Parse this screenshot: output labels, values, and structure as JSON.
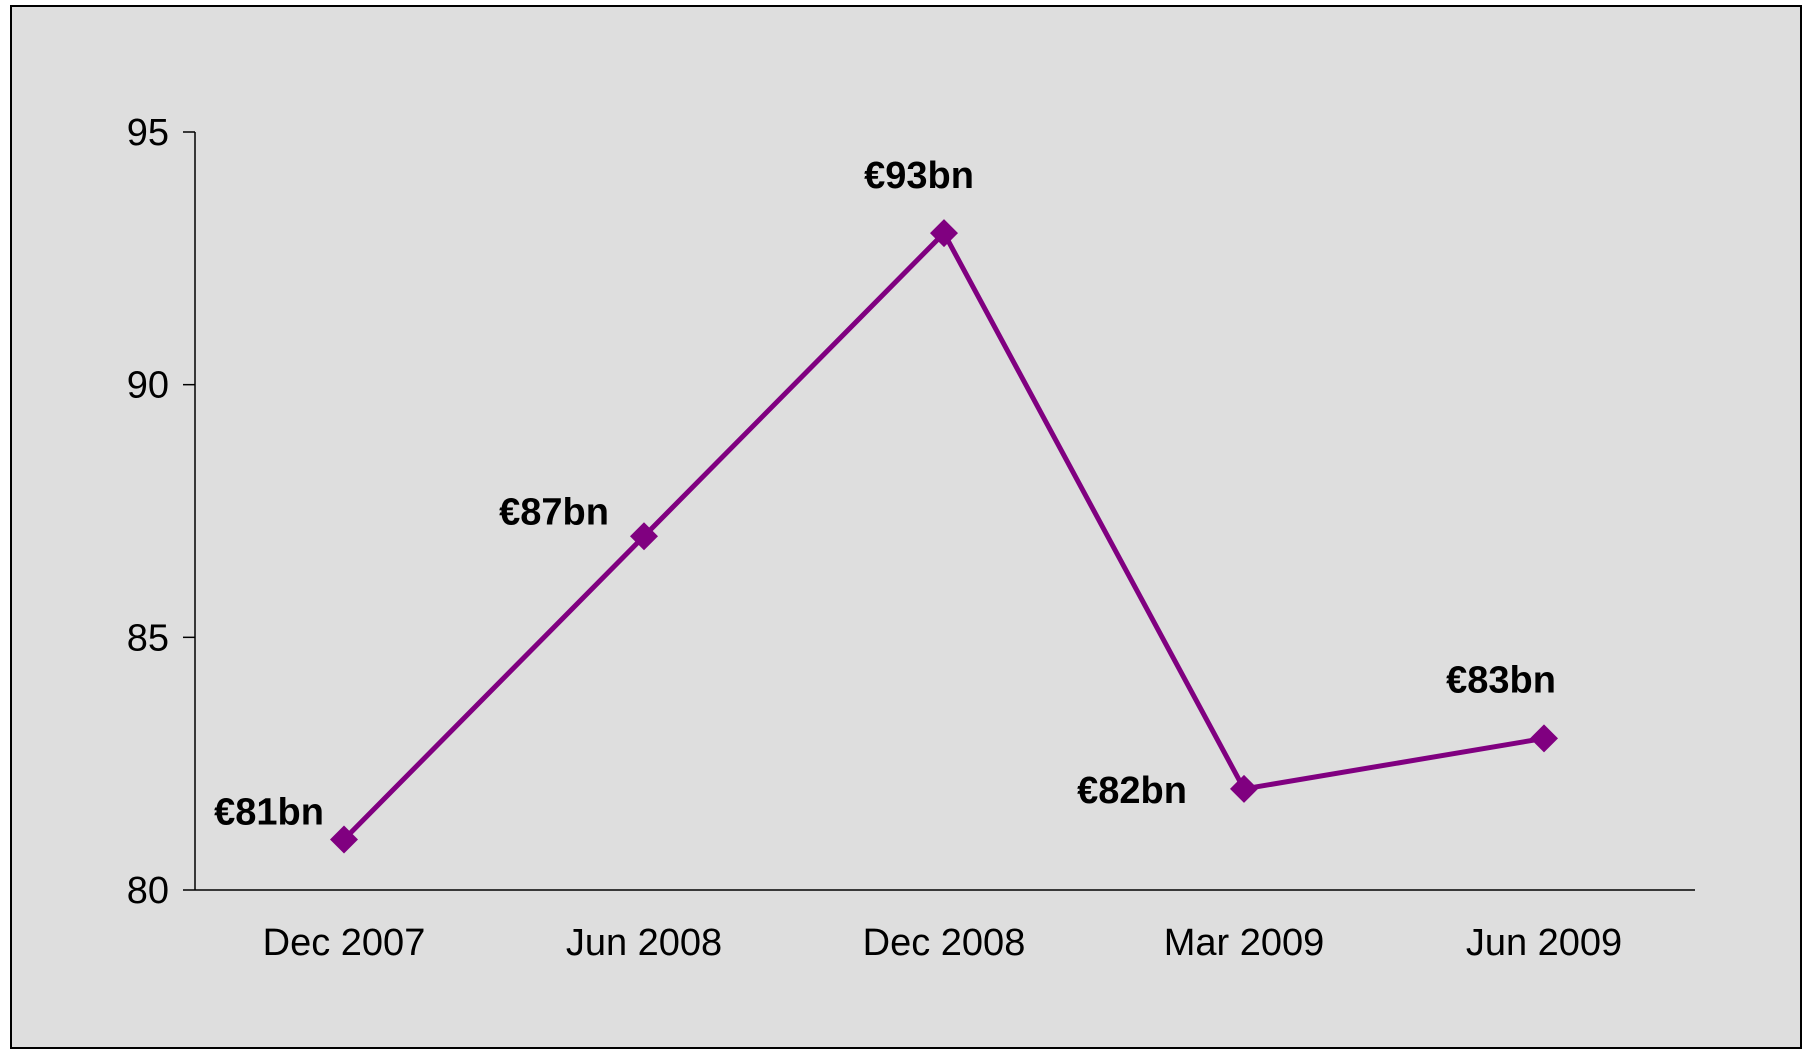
{
  "chart_data": {
    "type": "line",
    "title": "",
    "xlabel": "",
    "ylabel": "",
    "categories": [
      "Dec 2007",
      "Jun 2008",
      "Dec 2008",
      "Mar 2009",
      "Jun 2009"
    ],
    "series": [
      {
        "values": [
          81,
          87,
          93,
          82,
          83
        ],
        "data_labels": [
          "€81bn",
          "€87bn",
          "€93bn",
          "€82bn",
          "€83bn"
        ],
        "color": "#800080",
        "marker": "diamond"
      }
    ],
    "ylim": [
      80,
      95
    ],
    "yticks": [
      80,
      85,
      90,
      95
    ],
    "grid": false,
    "legend": "none",
    "background_color": "#dedede"
  }
}
